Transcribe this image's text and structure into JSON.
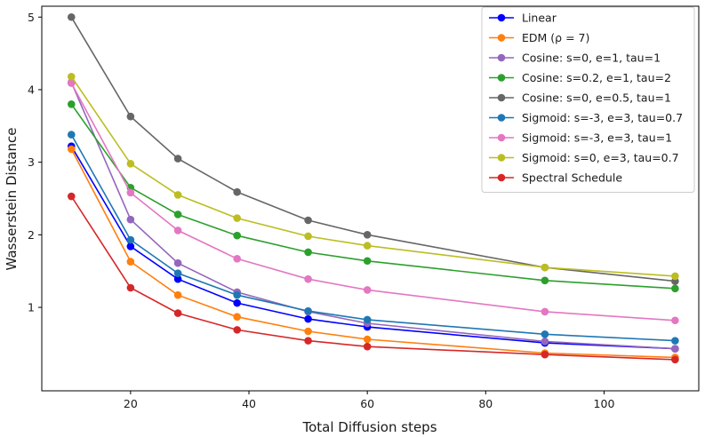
{
  "chart_data": {
    "type": "line",
    "title": "",
    "xlabel": "Total Diffusion steps",
    "ylabel": "Wasserstein Distance",
    "xlim": [
      5,
      116
    ],
    "ylim": [
      -0.15,
      5.15
    ],
    "xticks": [
      20,
      40,
      60,
      80,
      100
    ],
    "yticks": [
      1,
      2,
      3,
      4,
      5
    ],
    "grid": false,
    "legend_position": "top-right",
    "x": [
      10,
      20,
      28,
      38,
      50,
      60,
      90,
      112
    ],
    "series": [
      {
        "name": "Linear",
        "color": "#0000ff",
        "values": [
          3.22,
          1.84,
          1.39,
          1.06,
          0.84,
          0.73,
          0.51,
          0.43
        ]
      },
      {
        "name": "EDM (ρ = 7)",
        "color": "#ff7f0e",
        "values": [
          3.18,
          1.63,
          1.17,
          0.87,
          0.67,
          0.56,
          0.37,
          0.31
        ]
      },
      {
        "name": "Cosine: s=0, e=1, tau=1",
        "color": "#9467bd",
        "values": [
          4.1,
          2.21,
          1.61,
          1.21,
          0.94,
          0.78,
          0.53,
          0.43
        ]
      },
      {
        "name": "Cosine: s=0.2, e=1, tau=2",
        "color": "#2ca02c",
        "values": [
          3.8,
          2.65,
          2.28,
          1.99,
          1.76,
          1.64,
          1.37,
          1.26
        ]
      },
      {
        "name": "Cosine: s=0, e=0.5, tau=1",
        "color": "#666666",
        "values": [
          5.0,
          3.63,
          3.05,
          2.59,
          2.2,
          2.0,
          1.55,
          1.36
        ]
      },
      {
        "name": "Sigmoid: s=-3, e=3, tau=0.7",
        "color": "#1f77b4",
        "values": [
          3.38,
          1.93,
          1.47,
          1.17,
          0.95,
          0.83,
          0.63,
          0.54
        ]
      },
      {
        "name": "Sigmoid: s=-3, e=3, tau=1",
        "color": "#e377c2",
        "values": [
          4.09,
          2.58,
          2.06,
          1.67,
          1.39,
          1.24,
          0.94,
          0.82
        ]
      },
      {
        "name": "Sigmoid: s=0, e=3, tau=0.7",
        "color": "#bcbd22",
        "values": [
          4.18,
          2.98,
          2.55,
          2.23,
          1.98,
          1.85,
          1.55,
          1.43
        ]
      },
      {
        "name": "Spectral Schedule",
        "color": "#d62728",
        "values": [
          2.53,
          1.27,
          0.92,
          0.69,
          0.54,
          0.46,
          0.35,
          0.28
        ]
      }
    ]
  }
}
